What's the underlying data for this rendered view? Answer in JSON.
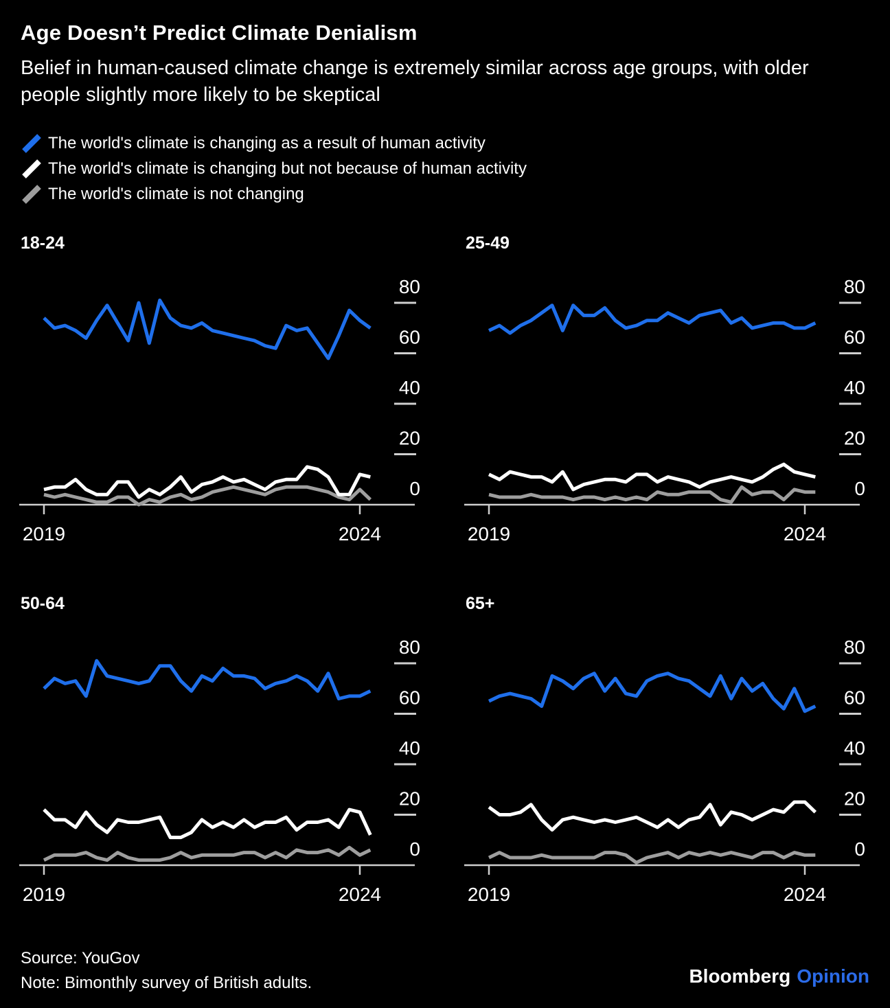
{
  "header": {
    "title": "Age Doesn’t Predict Climate Denialism",
    "subtitle": "Belief in human-caused climate change is extremely similar across age groups, with older people slightly more likely to be skeptical"
  },
  "colors": {
    "background": "#000000",
    "blue": "#1f6feb",
    "white": "#ffffff",
    "gray": "#9e9e9e",
    "axis": "#cfcfcf",
    "opinion_blue": "#2b6be8"
  },
  "legend": {
    "items": [
      {
        "label": "The world's climate is changing as a result of human activity",
        "color": "#1f6feb"
      },
      {
        "label": "The world's climate is changing but not because of human activity",
        "color": "#ffffff"
      },
      {
        "label": "The world's climate is not changing",
        "color": "#9e9e9e"
      }
    ]
  },
  "chart_data": [
    {
      "type": "line",
      "title": "18-24",
      "x_start_year": 2019,
      "cadence_months": 2,
      "x_ticks": [
        {
          "label": "2019",
          "index": 0
        },
        {
          "label": "2024",
          "index": 30
        }
      ],
      "y_ticks": [
        80,
        60,
        40,
        20,
        0
      ],
      "ylim": [
        0,
        88
      ],
      "grid": false,
      "series": [
        {
          "name": "The world's climate is changing as a result of human activity",
          "color": "#1f6feb",
          "values": [
            74,
            70,
            71,
            69,
            66,
            73,
            79,
            72,
            65,
            80,
            64,
            81,
            74,
            71,
            70,
            72,
            69,
            68,
            67,
            66,
            65,
            63,
            62,
            71,
            69,
            70,
            64,
            58,
            67,
            77,
            73,
            70
          ]
        },
        {
          "name": "The world's climate is changing but not because of human activity",
          "color": "#ffffff",
          "values": [
            6,
            7,
            7,
            10,
            6,
            4,
            4,
            9,
            9,
            3,
            6,
            4,
            7,
            11,
            5,
            8,
            9,
            11,
            9,
            10,
            8,
            6,
            9,
            10,
            10,
            15,
            14,
            11,
            4,
            4,
            12,
            11
          ]
        },
        {
          "name": "The world's climate is not changing",
          "color": "#9e9e9e",
          "values": [
            4,
            3,
            4,
            3,
            2,
            1,
            1,
            3,
            3,
            0,
            2,
            1,
            3,
            4,
            2,
            3,
            5,
            6,
            7,
            6,
            5,
            4,
            6,
            7,
            7,
            7,
            6,
            5,
            3,
            2,
            6,
            2
          ]
        }
      ]
    },
    {
      "type": "line",
      "title": "25-49",
      "x_start_year": 2019,
      "cadence_months": 2,
      "x_ticks": [
        {
          "label": "2019",
          "index": 0
        },
        {
          "label": "2024",
          "index": 30
        }
      ],
      "y_ticks": [
        80,
        60,
        40,
        20,
        0
      ],
      "ylim": [
        0,
        88
      ],
      "grid": false,
      "series": [
        {
          "name": "The world's climate is changing as a result of human activity",
          "color": "#1f6feb",
          "values": [
            69,
            71,
            68,
            71,
            73,
            76,
            79,
            69,
            79,
            75,
            75,
            78,
            73,
            70,
            71,
            73,
            73,
            76,
            74,
            72,
            75,
            76,
            77,
            72,
            74,
            70,
            71,
            72,
            72,
            70,
            70,
            72
          ]
        },
        {
          "name": "The world's climate is changing but not because of human activity",
          "color": "#ffffff",
          "values": [
            12,
            10,
            13,
            12,
            11,
            11,
            9,
            13,
            6,
            8,
            9,
            10,
            10,
            9,
            12,
            12,
            9,
            11,
            10,
            9,
            7,
            9,
            10,
            11,
            10,
            9,
            11,
            14,
            16,
            13,
            12,
            11
          ]
        },
        {
          "name": "The world's climate is not changing",
          "color": "#9e9e9e",
          "values": [
            4,
            3,
            3,
            3,
            4,
            3,
            3,
            3,
            2,
            3,
            3,
            2,
            3,
            2,
            3,
            2,
            5,
            4,
            4,
            5,
            5,
            5,
            2,
            1,
            7,
            4,
            5,
            5,
            2,
            6,
            5,
            5
          ]
        }
      ]
    },
    {
      "type": "line",
      "title": "50-64",
      "x_start_year": 2019,
      "cadence_months": 2,
      "x_ticks": [
        {
          "label": "2019",
          "index": 0
        },
        {
          "label": "2024",
          "index": 30
        }
      ],
      "y_ticks": [
        80,
        60,
        40,
        20,
        0
      ],
      "ylim": [
        0,
        88
      ],
      "grid": false,
      "series": [
        {
          "name": "The world's climate is changing as a result of human activity",
          "color": "#1f6feb",
          "values": [
            70,
            74,
            72,
            73,
            67,
            81,
            75,
            74,
            73,
            72,
            73,
            79,
            79,
            73,
            69,
            75,
            73,
            78,
            75,
            75,
            74,
            70,
            72,
            73,
            75,
            73,
            69,
            76,
            66,
            67,
            67,
            69
          ]
        },
        {
          "name": "The world's climate is changing but not because of human activity",
          "color": "#ffffff",
          "values": [
            22,
            18,
            18,
            15,
            21,
            16,
            13,
            18,
            17,
            17,
            18,
            19,
            11,
            11,
            13,
            18,
            15,
            17,
            15,
            18,
            15,
            17,
            17,
            19,
            14,
            17,
            17,
            18,
            15,
            22,
            21,
            12
          ]
        },
        {
          "name": "The world's climate is not changing",
          "color": "#9e9e9e",
          "values": [
            2,
            4,
            4,
            4,
            5,
            3,
            2,
            5,
            3,
            2,
            2,
            2,
            3,
            5,
            3,
            4,
            4,
            4,
            4,
            5,
            5,
            3,
            5,
            3,
            6,
            5,
            5,
            6,
            4,
            7,
            4,
            6
          ]
        }
      ]
    },
    {
      "type": "line",
      "title": "65+",
      "x_start_year": 2019,
      "cadence_months": 2,
      "x_ticks": [
        {
          "label": "2019",
          "index": 0
        },
        {
          "label": "2024",
          "index": 30
        }
      ],
      "y_ticks": [
        80,
        60,
        40,
        20,
        0
      ],
      "ylim": [
        0,
        88
      ],
      "grid": false,
      "series": [
        {
          "name": "The world's climate is changing as a result of human activity",
          "color": "#1f6feb",
          "values": [
            65,
            67,
            68,
            67,
            66,
            63,
            75,
            73,
            70,
            74,
            76,
            69,
            74,
            68,
            67,
            73,
            75,
            76,
            74,
            73,
            70,
            67,
            75,
            66,
            74,
            69,
            72,
            66,
            62,
            70,
            61,
            63
          ]
        },
        {
          "name": "The world's climate is changing but not because of human activity",
          "color": "#ffffff",
          "values": [
            23,
            20,
            20,
            21,
            24,
            18,
            14,
            18,
            19,
            18,
            17,
            18,
            17,
            18,
            19,
            17,
            15,
            18,
            15,
            18,
            19,
            24,
            16,
            21,
            20,
            18,
            20,
            22,
            21,
            25,
            25,
            21
          ]
        },
        {
          "name": "The world's climate is not changing",
          "color": "#9e9e9e",
          "values": [
            3,
            5,
            3,
            3,
            3,
            4,
            3,
            3,
            3,
            3,
            3,
            5,
            5,
            4,
            1,
            3,
            4,
            5,
            3,
            5,
            4,
            5,
            4,
            5,
            4,
            3,
            5,
            5,
            3,
            5,
            4,
            4
          ]
        }
      ]
    }
  ],
  "footer": {
    "source": "Source: YouGov",
    "note": "Note: Bimonthly survey of British adults.",
    "logo_bloomberg": "Bloomberg",
    "logo_opinion": "Opinion"
  }
}
